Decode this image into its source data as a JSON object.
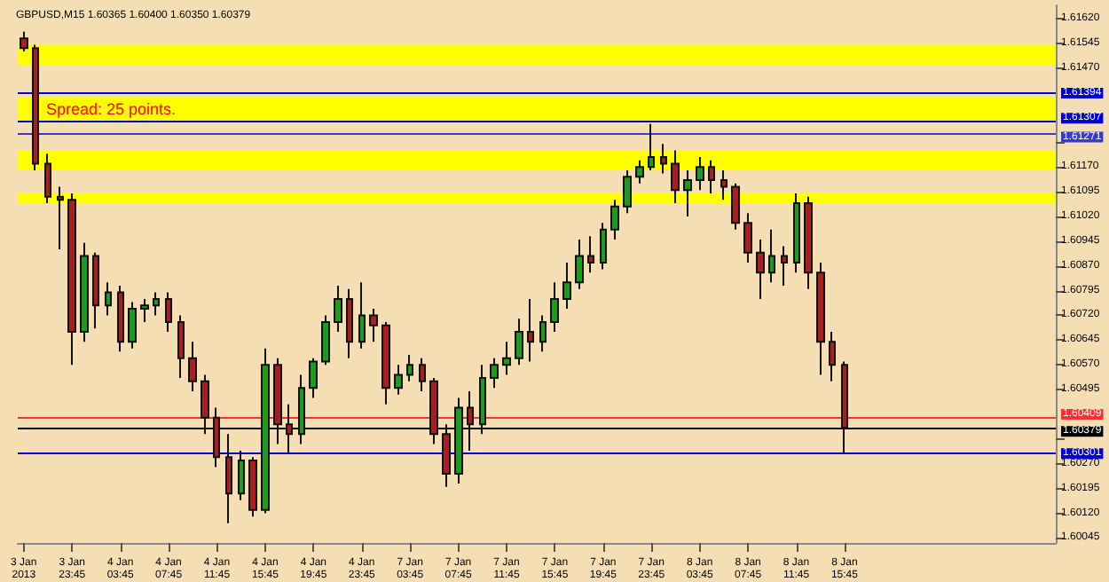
{
  "chart_data": {
    "type": "candlestick",
    "title": "GBPUSD,M15 1.60365 1.60400 1.60350 1.60379",
    "annotations": [
      "Spread: 25 points."
    ],
    "categories": [
      "3 Jan 2013",
      null,
      null,
      null,
      "3 Jan 23:45",
      null,
      null,
      null,
      "4 Jan 03:45",
      null,
      null,
      null,
      "4 Jan 07:45",
      null,
      null,
      null,
      "4 Jan 11:45",
      null,
      null,
      null,
      "4 Jan 15:45",
      null,
      null,
      null,
      "4 Jan 19:45",
      null,
      null,
      null,
      "4 Jan 23:45",
      null,
      null,
      null,
      "7 Jan 03:45",
      null,
      null,
      null,
      "7 Jan 07:45",
      null,
      null,
      null,
      "7 Jan 11:45",
      null,
      null,
      null,
      "7 Jan 15:45",
      null,
      null,
      null,
      "7 Jan 19:45",
      null,
      null,
      null,
      "7 Jan 23:45",
      null,
      null,
      null,
      "8 Jan 03:45",
      null,
      null,
      null,
      "8 Jan 07:45",
      null,
      null,
      null,
      "8 Jan 11:45",
      null,
      null,
      null,
      "8 Jan 15:45",
      null,
      null,
      null,
      null,
      null,
      null,
      null,
      null,
      null,
      null,
      null,
      null,
      null,
      null,
      null,
      null,
      null
    ],
    "ohlc": [
      [
        1.6156,
        1.6158,
        1.6152,
        1.6153
      ],
      [
        1.6153,
        1.6154,
        1.6116,
        1.6118
      ],
      [
        1.6118,
        1.6121,
        1.6106,
        1.6108
      ],
      [
        1.6108,
        1.6111,
        1.6092,
        1.6107
      ],
      [
        1.6107,
        1.6109,
        1.6057,
        1.6067
      ],
      [
        1.6067,
        1.6094,
        1.6064,
        1.609
      ],
      [
        1.609,
        1.6091,
        1.6068,
        1.6075
      ],
      [
        1.6075,
        1.6082,
        1.6072,
        1.6079
      ],
      [
        1.6079,
        1.6081,
        1.6061,
        1.6064
      ],
      [
        1.6064,
        1.6076,
        1.6062,
        1.6074
      ],
      [
        1.6074,
        1.6077,
        1.607,
        1.6075
      ],
      [
        1.6075,
        1.6079,
        1.6072,
        1.6077
      ],
      [
        1.6077,
        1.6079,
        1.6067,
        1.607
      ],
      [
        1.607,
        1.6072,
        1.6053,
        1.6059
      ],
      [
        1.6059,
        1.6064,
        1.6049,
        1.6052
      ],
      [
        1.6052,
        1.6054,
        1.6036,
        1.6041
      ],
      [
        1.6041,
        1.6044,
        1.6026,
        1.6029
      ],
      [
        1.6029,
        1.6036,
        1.6009,
        1.6018
      ],
      [
        1.6018,
        1.6031,
        1.6016,
        1.6028
      ],
      [
        1.6028,
        1.6029,
        1.6011,
        1.6013
      ],
      [
        1.6013,
        1.6062,
        1.6012,
        1.6057
      ],
      [
        1.6057,
        1.6059,
        1.6033,
        1.6039
      ],
      [
        1.6039,
        1.6045,
        1.603,
        1.6036
      ],
      [
        1.6036,
        1.6054,
        1.6033,
        1.605
      ],
      [
        1.605,
        1.6059,
        1.6047,
        1.6058
      ],
      [
        1.6058,
        1.6072,
        1.6057,
        1.607
      ],
      [
        1.607,
        1.6081,
        1.6067,
        1.6077
      ],
      [
        1.6077,
        1.608,
        1.6059,
        1.6064
      ],
      [
        1.6064,
        1.6082,
        1.6062,
        1.6072
      ],
      [
        1.6072,
        1.6074,
        1.6064,
        1.6069
      ],
      [
        1.6069,
        1.607,
        1.6045,
        1.605
      ],
      [
        1.605,
        1.6057,
        1.6048,
        1.6054
      ],
      [
        1.6054,
        1.606,
        1.6052,
        1.6057
      ],
      [
        1.6057,
        1.6059,
        1.6049,
        1.6052
      ],
      [
        1.6052,
        1.6053,
        1.6033,
        1.6036
      ],
      [
        1.6036,
        1.6039,
        1.602,
        1.6024
      ],
      [
        1.6024,
        1.6047,
        1.6021,
        1.6044
      ],
      [
        1.6044,
        1.6049,
        1.6031,
        1.6039
      ],
      [
        1.6039,
        1.6057,
        1.6036,
        1.6053
      ],
      [
        1.6053,
        1.6059,
        1.605,
        1.6057
      ],
      [
        1.6057,
        1.6064,
        1.6054,
        1.6059
      ],
      [
        1.6059,
        1.6071,
        1.6057,
        1.6067
      ],
      [
        1.6067,
        1.6077,
        1.6058,
        1.6064
      ],
      [
        1.6064,
        1.6072,
        1.6061,
        1.607
      ],
      [
        1.607,
        1.6082,
        1.6067,
        1.6077
      ],
      [
        1.6077,
        1.6088,
        1.6074,
        1.6082
      ],
      [
        1.6082,
        1.6095,
        1.608,
        1.609
      ],
      [
        1.609,
        1.6096,
        1.6085,
        1.6088
      ],
      [
        1.6088,
        1.61,
        1.6086,
        1.6098
      ],
      [
        1.6098,
        1.6107,
        1.6095,
        1.6105
      ],
      [
        1.6105,
        1.6116,
        1.6103,
        1.6114
      ],
      [
        1.6114,
        1.6119,
        1.6112,
        1.6117
      ],
      [
        1.6117,
        1.613,
        1.6116,
        1.612
      ],
      [
        1.612,
        1.6124,
        1.6115,
        1.6118
      ],
      [
        1.6118,
        1.6122,
        1.6106,
        1.611
      ],
      [
        1.611,
        1.6116,
        1.6102,
        1.6113
      ],
      [
        1.6113,
        1.612,
        1.611,
        1.6117
      ],
      [
        1.6117,
        1.6119,
        1.6109,
        1.6113
      ],
      [
        1.6113,
        1.6116,
        1.6107,
        1.6111
      ],
      [
        1.6111,
        1.6112,
        1.6098,
        1.61
      ],
      [
        1.61,
        1.6103,
        1.6088,
        1.6091
      ],
      [
        1.6091,
        1.6095,
        1.6077,
        1.6085
      ],
      [
        1.6085,
        1.6098,
        1.6082,
        1.609
      ],
      [
        1.609,
        1.6093,
        1.6081,
        1.6088
      ],
      [
        1.6088,
        1.6109,
        1.6085,
        1.6106
      ],
      [
        1.6106,
        1.6108,
        1.608,
        1.6085
      ],
      [
        1.6085,
        1.6088,
        1.6054,
        1.6064
      ],
      [
        1.6064,
        1.6067,
        1.6052,
        1.6057
      ],
      [
        1.6057,
        1.6058,
        1.603,
        1.6038
      ],
      null,
      null,
      null,
      null,
      null,
      null,
      null,
      null,
      null,
      null,
      null,
      null,
      null,
      null,
      null,
      null,
      null
    ],
    "ylim": [
      1.6003,
      1.6166
    ],
    "yticks": [
      1.60045,
      {
        "value": 1.6012,
        "label": "1.60120"
      },
      1.60195,
      {
        "value": 1.6027,
        "label": "1.60270"
      },
      {
        "value": 1.60345,
        "label": null
      },
      1.60495,
      {
        "value": 1.6057,
        "label": "1.60570"
      },
      1.60645,
      {
        "value": 1.6072,
        "label": "1.60720"
      },
      1.60795,
      {
        "value": 1.6087,
        "label": "1.60870"
      },
      1.60945,
      {
        "value": 1.6102,
        "label": "1.61020"
      },
      1.61095,
      {
        "value": 1.6117,
        "label": "1.61170"
      },
      {
        "value": 1.61245,
        "label": null
      },
      {
        "value": 1.6147,
        "label": "1.61470"
      },
      1.61545,
      {
        "value": 1.6162,
        "label": "1.61620"
      }
    ],
    "ref_lines": [
      {
        "axis": "y",
        "value": 1.61394,
        "label": "1.61394",
        "color": "#0000cc"
      },
      {
        "axis": "y",
        "value": 1.61307,
        "label": "1.61307",
        "color": "#0000cc"
      },
      {
        "axis": "y",
        "value": 1.61271,
        "label": "1.61271",
        "color": "#3a3acc"
      },
      {
        "axis": "y",
        "value": 1.60409,
        "label": "1.60409",
        "color": "#ff3030"
      },
      {
        "axis": "y",
        "value": 1.60379,
        "label": "1.60379",
        "color": "#000000"
      },
      {
        "axis": "y",
        "value": 1.60301,
        "label": "1.60301",
        "color": "#0000cc"
      }
    ],
    "bands": [
      {
        "axis": "y",
        "from": 1.6148,
        "to": 1.6154,
        "color": "#ffff00"
      },
      {
        "axis": "y",
        "from": 1.6131,
        "to": 1.6138,
        "color": "#ffff00"
      },
      {
        "axis": "y",
        "from": 1.6116,
        "to": 1.6122,
        "color": "#ffff00"
      },
      {
        "axis": "y",
        "from": 1.6106,
        "to": 1.6109,
        "color": "#ffff00"
      }
    ]
  }
}
